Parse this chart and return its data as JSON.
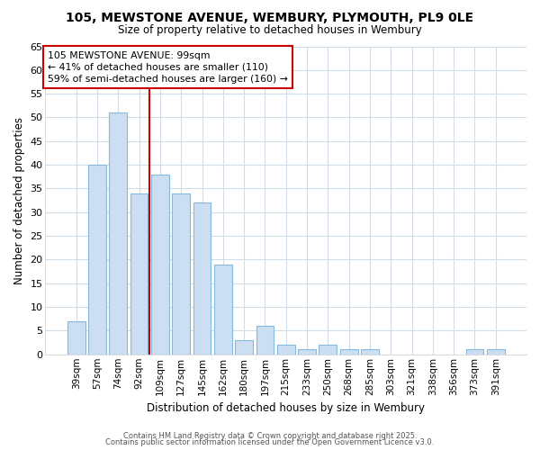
{
  "title": "105, MEWSTONE AVENUE, WEMBURY, PLYMOUTH, PL9 0LE",
  "subtitle": "Size of property relative to detached houses in Wembury",
  "xlabel": "Distribution of detached houses by size in Wembury",
  "ylabel": "Number of detached properties",
  "categories": [
    "39sqm",
    "57sqm",
    "74sqm",
    "92sqm",
    "109sqm",
    "127sqm",
    "145sqm",
    "162sqm",
    "180sqm",
    "197sqm",
    "215sqm",
    "233sqm",
    "250sqm",
    "268sqm",
    "285sqm",
    "303sqm",
    "321sqm",
    "338sqm",
    "356sqm",
    "373sqm",
    "391sqm"
  ],
  "values": [
    7,
    40,
    51,
    34,
    38,
    34,
    32,
    19,
    3,
    6,
    2,
    1,
    2,
    1,
    1,
    0,
    0,
    0,
    0,
    1,
    1
  ],
  "bar_color": "#ccdff2",
  "bar_edge_color": "#85b8de",
  "vline_index": 3,
  "vline_color": "#cc0000",
  "annotation_text": "105 MEWSTONE AVENUE: 99sqm\n← 41% of detached houses are smaller (110)\n59% of semi-detached houses are larger (160) →",
  "annotation_box_color": "#ffffff",
  "annotation_box_edge_color": "#cc0000",
  "bg_color": "#ffffff",
  "grid_color": "#d0dce8",
  "ylim": [
    0,
    65
  ],
  "yticks": [
    0,
    5,
    10,
    15,
    20,
    25,
    30,
    35,
    40,
    45,
    50,
    55,
    60,
    65
  ],
  "footer_line1": "Contains HM Land Registry data © Crown copyright and database right 2025.",
  "footer_line2": "Contains public sector information licensed under the Open Government Licence v3.0."
}
